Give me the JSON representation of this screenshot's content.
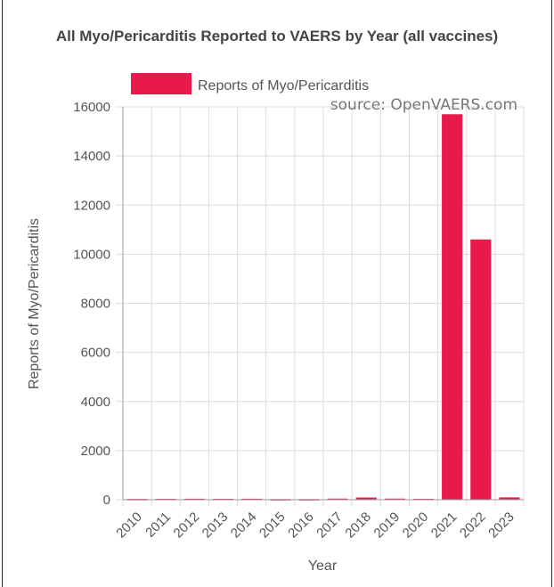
{
  "chart_data": {
    "type": "bar",
    "title": "All Myo/Pericarditis Reported to VAERS by Year (all vaccines)",
    "annotation": "source: OpenVAERS.com",
    "xlabel": "Year",
    "ylabel": "Reports of Myo/Pericarditis",
    "ylim": [
      0,
      16000
    ],
    "yticks": [
      0,
      2000,
      4000,
      6000,
      8000,
      10000,
      12000,
      14000,
      16000
    ],
    "grid": true,
    "legend_position": "top",
    "categories": [
      "2010",
      "2011",
      "2012",
      "2013",
      "2014",
      "2015",
      "2016",
      "2017",
      "2018",
      "2019",
      "2020",
      "2021",
      "2022",
      "2023"
    ],
    "series": [
      {
        "name": "Reports of Myo/Pericarditis",
        "color": "#e8194b",
        "values": [
          30,
          35,
          40,
          35,
          40,
          25,
          25,
          45,
          90,
          45,
          35,
          15700,
          10600,
          95
        ]
      }
    ]
  }
}
